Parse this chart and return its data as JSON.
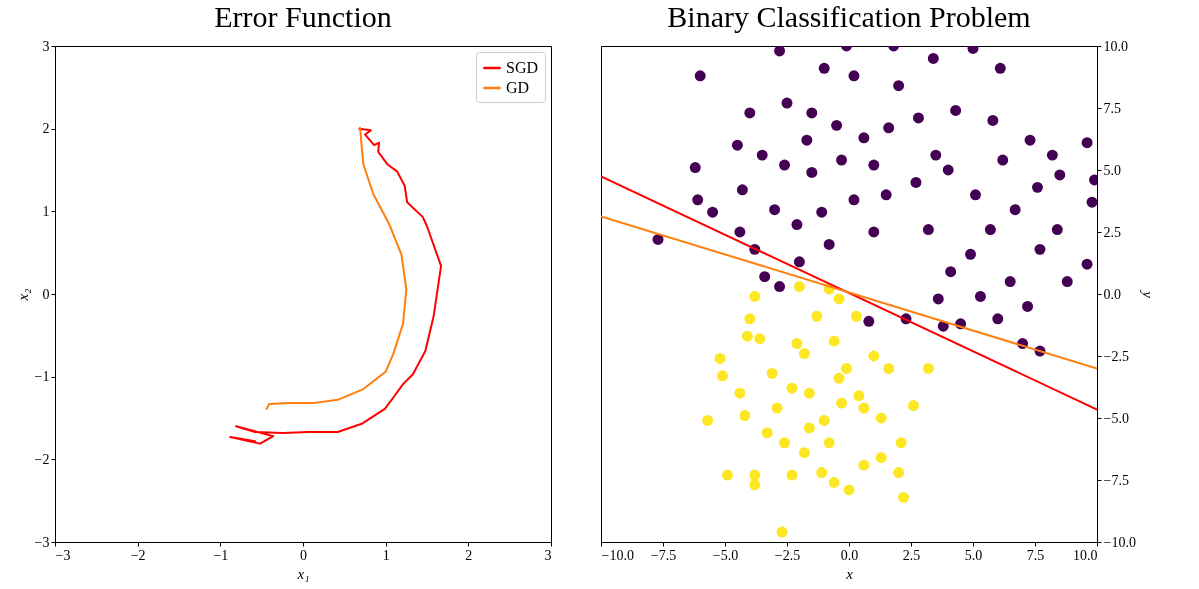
{
  "chart_data": [
    {
      "type": "line",
      "title": "Error Function",
      "xlabel": "x₁",
      "ylabel": "x₂",
      "xlim": [
        -3,
        3
      ],
      "ylim": [
        -3,
        3
      ],
      "xticks": [
        {
          "value": -3,
          "label": "−3"
        },
        {
          "value": -2,
          "label": "−2"
        },
        {
          "value": -1,
          "label": "−1"
        },
        0,
        1,
        2,
        3
      ],
      "yticks": [
        {
          "value": -3,
          "label": "−3"
        },
        {
          "value": -2,
          "label": "−2"
        },
        {
          "value": -1,
          "label": "−1"
        },
        0,
        1,
        2,
        3
      ],
      "legend": "top right",
      "line_style": "solid",
      "series": [
        {
          "name": "SGD",
          "color": "#ff0000",
          "x": [
            0.68,
            0.82,
            0.75,
            0.86,
            0.92,
            0.91,
            1.02,
            1.14,
            1.23,
            1.26,
            1.45,
            1.5,
            1.67,
            1.62,
            1.58,
            1.48,
            1.33,
            1.21,
            1.08,
            0.99,
            0.71,
            0.42,
            0.06,
            -0.24,
            -0.58,
            -0.81,
            -0.36,
            -0.52,
            -0.88,
            -0.58
          ],
          "values": [
            2.0,
            1.98,
            1.93,
            1.8,
            1.83,
            1.72,
            1.57,
            1.48,
            1.31,
            1.11,
            0.93,
            0.82,
            0.34,
            0.0,
            -0.27,
            -0.69,
            -0.97,
            -1.09,
            -1.27,
            -1.39,
            -1.57,
            -1.67,
            -1.67,
            -1.68,
            -1.67,
            -1.6,
            -1.72,
            -1.81,
            -1.73,
            -1.78
          ]
        },
        {
          "name": "GD",
          "color": "#ff7f0e",
          "x": [
            0.69,
            0.73,
            0.85,
            1.04,
            1.19,
            1.25,
            1.21,
            1.09,
            1.0,
            0.73,
            0.42,
            0.12,
            -0.17,
            -0.41,
            -0.44
          ],
          "values": [
            2.01,
            1.57,
            1.21,
            0.85,
            0.48,
            0.06,
            -0.36,
            -0.73,
            -0.94,
            -1.15,
            -1.28,
            -1.32,
            -1.32,
            -1.33,
            -1.39
          ]
        }
      ]
    },
    {
      "type": "scatter",
      "title": "Binary Classification Problem",
      "xlabel": "x",
      "y2label": "y",
      "xlim": [
        -10,
        10
      ],
      "y2lim": [
        -10,
        10
      ],
      "xticks": [
        {
          "value": -10,
          "label": "−10.0"
        },
        {
          "value": -7.5,
          "label": "−7.5"
        },
        {
          "value": -5,
          "label": "−5.0"
        },
        {
          "value": -2.5,
          "label": "−2.5"
        },
        {
          "value": 0,
          "label": "0.0"
        },
        2.5,
        {
          "value": 5,
          "label": "5.0"
        },
        7.5,
        {
          "value": 10,
          "label": "10.0"
        }
      ],
      "y2ticks": [
        {
          "value": -10,
          "label": "−10.0"
        },
        {
          "value": -7.5,
          "label": "−7.5"
        },
        {
          "value": -5,
          "label": "−5.0"
        },
        {
          "value": -2.5,
          "label": "−2.5"
        },
        {
          "value": 0,
          "label": "0.0"
        },
        2.5,
        {
          "value": 5,
          "label": "5.0"
        },
        7.5,
        {
          "value": 10,
          "label": "10.0"
        }
      ],
      "series": [
        {
          "color": "#440154",
          "axis": "y2",
          "marker": "circle",
          "x": [
            -7.7,
            -6,
            -6.2,
            -6.1,
            -5.5,
            -4.4,
            -3.8,
            -3.4,
            -2.8,
            0.8,
            2.3,
            3.8,
            4.5,
            7,
            7.7,
            9.6,
            9.8,
            9.9,
            9.6,
            8.5,
            -2.8,
            -0.1,
            1.8,
            5,
            6.1,
            3.4,
            -4.0,
            -2.5,
            -1.5,
            -4.5,
            -3.5,
            -2.6,
            -1.5,
            -0.3,
            0.6,
            1.6,
            2.8,
            4.3,
            5.8,
            7.3,
            8.2,
            7.6,
            6.7,
            5.7,
            4.9,
            4.1,
            3.6,
            5.3,
            6.5,
            7.7,
            8.4,
            2.7,
            1.5,
            0.2,
            -1.1,
            -2.1,
            -3.0,
            -4.3,
            -0.8,
            -2.0,
            1.0,
            3.2,
            4.0,
            5.1,
            6.2,
            2.0,
            0.2,
            -1.0,
            3.5,
            -1.7,
            -0.5,
            1.0,
            8.8,
            7.2,
            6.0
          ],
          "values": [
            2.2,
            8.8,
            5.1,
            3.8,
            3.3,
            2.5,
            1.8,
            0.7,
            0.3,
            -1.1,
            -1.0,
            -1.3,
            -1.2,
            -2.0,
            -2.3,
            1.2,
            3.7,
            4.6,
            6.1,
            4.8,
            9.8,
            10,
            10,
            9.9,
            9.1,
            9.5,
            7.3,
            7.7,
            7.3,
            6.0,
            5.6,
            5.2,
            4.9,
            5.4,
            6.3,
            6.7,
            7.1,
            7.4,
            7.0,
            6.2,
            5.6,
            4.3,
            3.4,
            2.6,
            1.6,
            0.9,
            -0.2,
            -0.1,
            0.5,
            1.8,
            2.6,
            4.5,
            4.0,
            3.8,
            3.3,
            2.8,
            3.4,
            4.2,
            2.0,
            1.3,
            2.5,
            2.6,
            5.0,
            4.0,
            5.4,
            8.4,
            8.8,
            9.1,
            5.6,
            6.2,
            6.8,
            5.2,
            0.5,
            -0.5,
            -1.0
          ]
        },
        {
          "color": "#fde725",
          "axis": "y2",
          "marker": "circle",
          "x": [
            -2.7,
            -3.8,
            -4.9,
            -3.8,
            -2.3,
            -1.1,
            0.0,
            -0.6,
            1.3,
            2.2,
            0.6,
            2.0,
            -5.7,
            -4.2,
            -5.1,
            -5.2,
            -4.0,
            -4.1,
            -3.6,
            -3.8,
            -2.0,
            -0.8,
            0.3,
            -1.3,
            -0.6,
            -1.8,
            -0.1,
            1.0,
            1.6,
            3.2,
            2.6,
            2.1,
            1.3,
            0.6,
            0.4,
            -0.3,
            -1.0,
            -1.6,
            -2.3,
            -2.9,
            -3.3,
            -2.6,
            -1.8,
            -0.8,
            -1.6,
            -0.4,
            -3.1,
            -2.1,
            -4.4,
            -0.4
          ],
          "values": [
            -9.6,
            -7.3,
            -7.3,
            -7.7,
            -7.3,
            -7.2,
            -7.9,
            -7.6,
            -6.6,
            -8.2,
            -6.9,
            -7.2,
            -5.1,
            -4.9,
            -3.3,
            -2.6,
            -1.0,
            -1.7,
            -1.8,
            -0.1,
            0.3,
            0.2,
            -0.9,
            -0.9,
            -1.9,
            -2.4,
            -3.0,
            -2.5,
            -3.0,
            -3.0,
            -4.5,
            -6.0,
            -5.0,
            -4.6,
            -4.1,
            -4.4,
            -5.1,
            -4.0,
            -3.8,
            -4.6,
            -5.6,
            -6.0,
            -6.4,
            -6.0,
            -5.4,
            -3.4,
            -3.2,
            -2.0,
            -4.0,
            -0.2
          ]
        },
        {
          "type": "line",
          "color": "#ff0000",
          "axis": "y2",
          "x": [
            -10,
            10
          ],
          "values": [
            4.74,
            -4.66
          ]
        },
        {
          "type": "line",
          "color": "#ff7f0e",
          "axis": "y2",
          "x": [
            -10,
            10
          ],
          "values": [
            3.13,
            -3.01
          ]
        }
      ]
    }
  ]
}
